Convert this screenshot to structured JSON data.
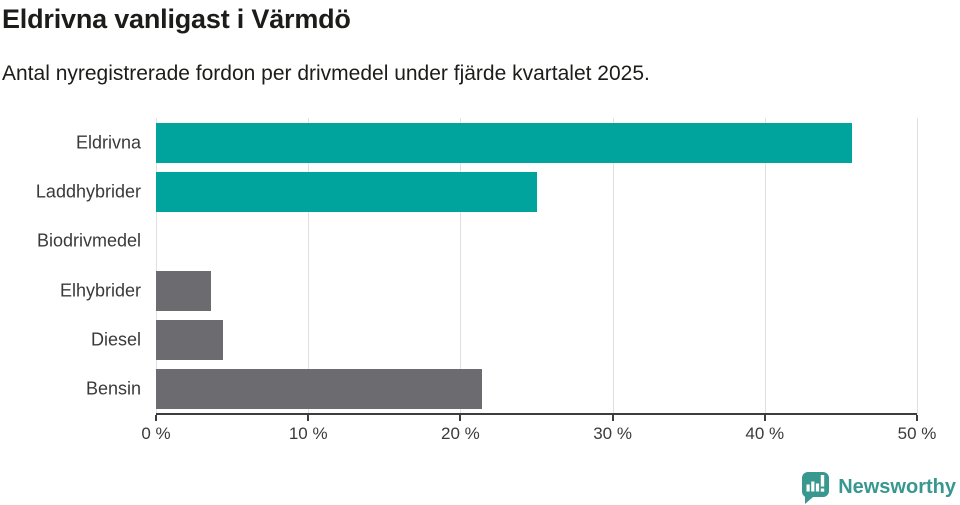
{
  "header": {
    "title": "Eldrivna vanligast i Värmdö",
    "subtitle": "Antal nyregistrerade fordon per drivmedel under fjärde kvartalet 2025."
  },
  "chart_data": {
    "type": "bar",
    "orientation": "horizontal",
    "title": "Eldrivna vanligast i Värmdö",
    "subtitle": "Antal nyregistrerade fordon per drivmedel under fjärde kvartalet 2025.",
    "categories": [
      "Eldrivna",
      "Laddhybrider",
      "Biodrivmedel",
      "Elhybrider",
      "Diesel",
      "Bensin"
    ],
    "values": [
      45.7,
      25.0,
      0,
      3.6,
      4.4,
      21.4
    ],
    "unit": "%",
    "xlim": [
      0,
      50
    ],
    "x_tick_values": [
      0,
      10,
      20,
      30,
      40,
      50
    ],
    "x_tick_labels": [
      "0 %",
      "10 %",
      "20 %",
      "30 %",
      "40 %",
      "50 %"
    ],
    "bar_colors": [
      "#00a49c",
      "#00a49c",
      "#6b6b70",
      "#6b6b70",
      "#6b6b70",
      "#6b6b70"
    ],
    "grid": "vertical",
    "legend": "none"
  },
  "colors": {
    "accent_teal": "#00a49c",
    "neutral_gray": "#6b6b70",
    "gridline": "#e0e0e0",
    "axis": "#3d3d3d",
    "text_dark": "#1c1c1a",
    "text_label": "#3a3a3a",
    "brand_teal": "#38978f"
  },
  "footer": {
    "brand": "Newsworthy"
  }
}
